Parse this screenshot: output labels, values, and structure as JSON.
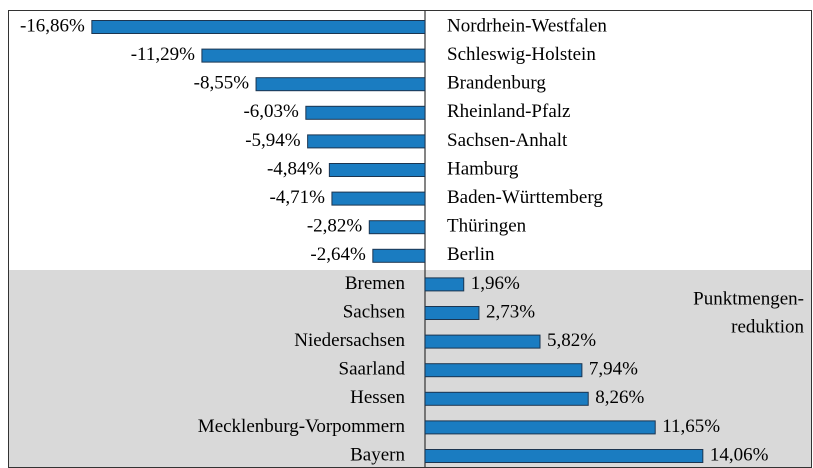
{
  "chart_data": {
    "type": "bar",
    "orientation": "horizontal",
    "color": "#1a7cc1",
    "categories": [
      "Nordrhein-Westfalen",
      "Schleswig-Holstein",
      "Brandenburg",
      "Rheinland-Pfalz",
      "Sachsen-Anhalt",
      "Hamburg",
      "Baden-Württemberg",
      "Thüringen",
      "Berlin",
      "Bremen",
      "Sachsen",
      "Niedersachsen",
      "Saarland",
      "Hessen",
      "Mecklenburg-Vorpommern",
      "Bayern"
    ],
    "values": [
      -16.86,
      -11.29,
      -8.55,
      -6.03,
      -5.94,
      -4.84,
      -4.71,
      -2.82,
      -2.64,
      1.96,
      2.73,
      5.82,
      7.94,
      8.26,
      11.65,
      14.06
    ],
    "value_labels": [
      "-16,86%",
      "-11,29%",
      "-8,55%",
      "-6,03%",
      "-5,94%",
      "-4,84%",
      "-4,71%",
      "-2,82%",
      "-2,64%",
      "1,96%",
      "2,73%",
      "5,82%",
      "7,94%",
      "8,26%",
      "11,65%",
      "14,06%"
    ],
    "annotation": [
      "Punktmengen-",
      "reduktion"
    ]
  }
}
